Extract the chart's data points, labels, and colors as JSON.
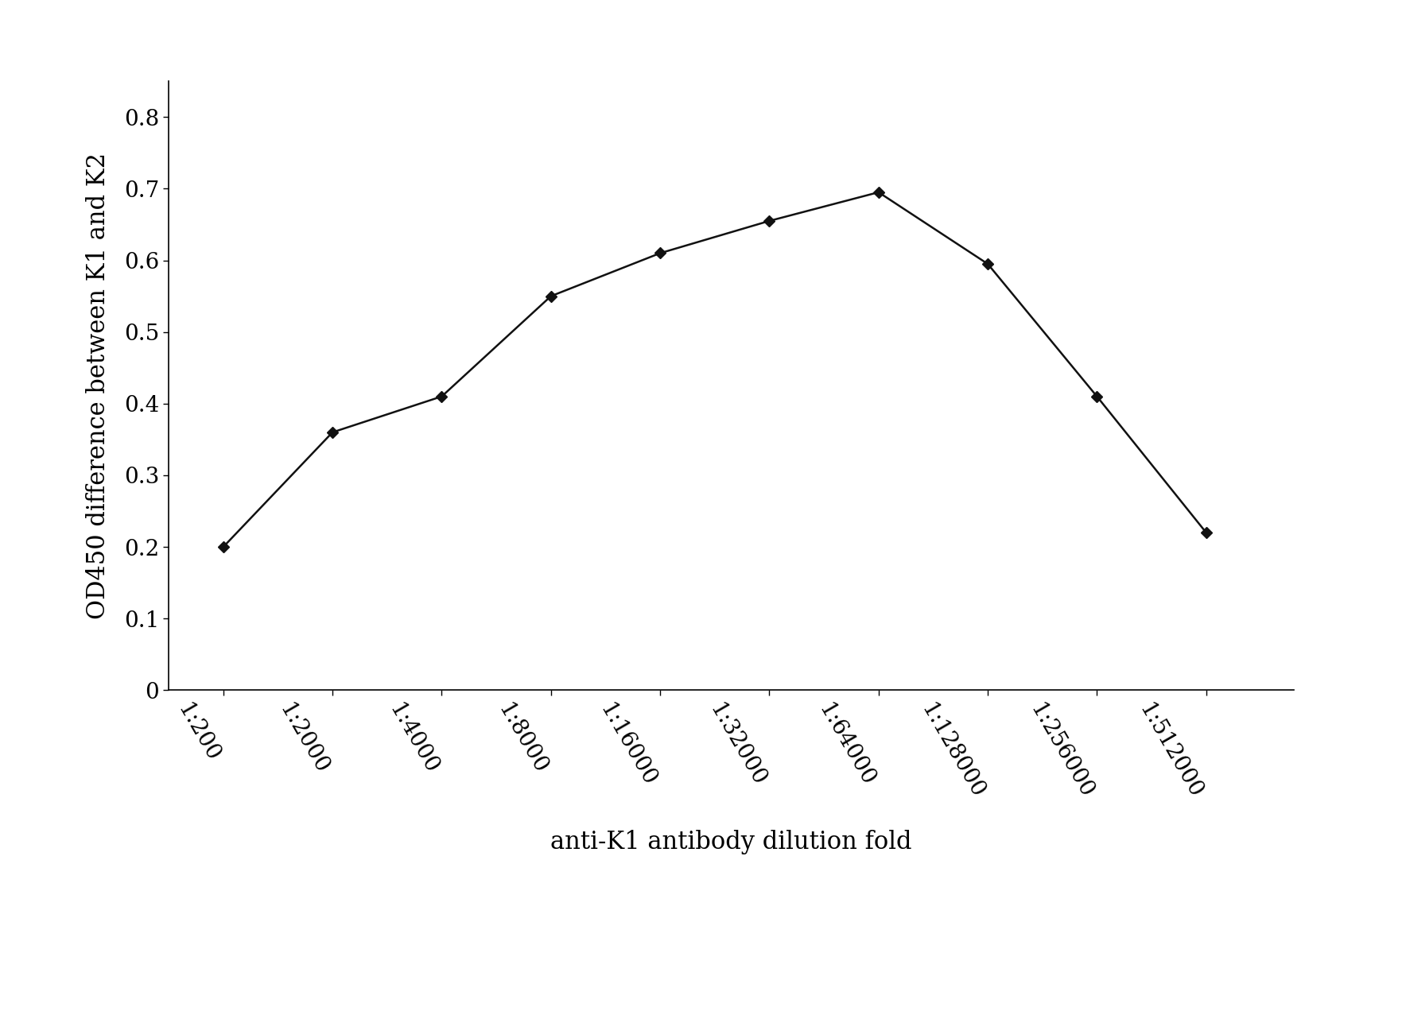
{
  "x_labels": [
    "1:200",
    "1:2000",
    "1:4000",
    "1:8000",
    "1:16000",
    "1:32000",
    "1:64000",
    "1:128000",
    "1:256000",
    "1:512000"
  ],
  "x_positions": [
    1,
    2,
    3,
    4,
    5,
    6,
    7,
    8,
    9,
    10
  ],
  "y_values": [
    0.2,
    0.36,
    0.41,
    0.55,
    0.61,
    0.655,
    0.695,
    0.595,
    0.41,
    0.22
  ],
  "ylabel": "OD450 difference between K1 and K2",
  "xlabel": "anti-K1 antibody dilution fold",
  "ylim": [
    0,
    0.85
  ],
  "yticks": [
    0,
    0.1,
    0.2,
    0.3,
    0.4,
    0.5,
    0.6,
    0.7,
    0.8
  ],
  "ytick_labels": [
    "0",
    "0.1",
    "0.2",
    "0.3",
    "0.4",
    "0.5",
    "0.6",
    "0.7",
    "0.8"
  ],
  "line_color": "#111111",
  "marker": "D",
  "marker_size": 7,
  "marker_color": "#111111",
  "background_color": "#ffffff",
  "font_family": "serif",
  "ylabel_fontsize": 22,
  "xlabel_fontsize": 22,
  "tick_fontsize": 20,
  "tick_rotation": -60,
  "figwidth": 17.68,
  "figheight": 12.77,
  "dpi": 100
}
